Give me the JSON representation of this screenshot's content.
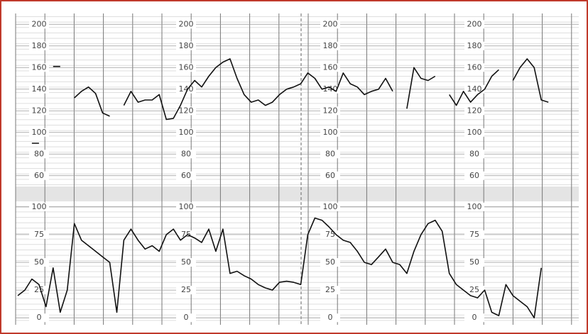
{
  "chart_data": [
    {
      "type": "line",
      "values": [
        null,
        null,
        90,
        90,
        null,
        161,
        161,
        null,
        132,
        138,
        142,
        136,
        118,
        115,
        null,
        125,
        138,
        128,
        130,
        130,
        135,
        112,
        113,
        125,
        140,
        148,
        142,
        152,
        160,
        165,
        168,
        150,
        135,
        128,
        130,
        125,
        128,
        135,
        140,
        142,
        145,
        155,
        150,
        140,
        142,
        138,
        155,
        145,
        142,
        135,
        138,
        140,
        150,
        138,
        null,
        122,
        160,
        150,
        148,
        152,
        null,
        135,
        125,
        138,
        128,
        135,
        140,
        152,
        158,
        null,
        148,
        160,
        168,
        160,
        130,
        128,
        null,
        null,
        null,
        null
      ],
      "ylim": [
        50,
        210
      ],
      "yticks": [
        60,
        80,
        100,
        120,
        140,
        160,
        180,
        200
      ],
      "grid": true,
      "color": "#111111"
    },
    {
      "type": "line",
      "values": [
        20,
        25,
        35,
        30,
        10,
        45,
        5,
        25,
        85,
        70,
        65,
        60,
        55,
        50,
        5,
        70,
        80,
        70,
        62,
        65,
        60,
        75,
        80,
        70,
        75,
        72,
        68,
        80,
        60,
        80,
        40,
        42,
        38,
        35,
        30,
        27,
        25,
        32,
        33,
        32,
        30,
        75,
        90,
        88,
        82,
        75,
        70,
        68,
        60,
        50,
        48,
        55,
        62,
        50,
        48,
        40,
        60,
        75,
        85,
        88,
        78,
        40,
        30,
        25,
        20,
        18,
        25,
        5,
        2,
        30,
        20,
        15,
        10,
        0,
        45,
        null,
        null,
        null,
        null,
        null
      ],
      "ylim": [
        -5,
        105
      ],
      "yticks": [
        0,
        25,
        50,
        75,
        100
      ],
      "grid": true,
      "color": "#111111"
    }
  ]
}
